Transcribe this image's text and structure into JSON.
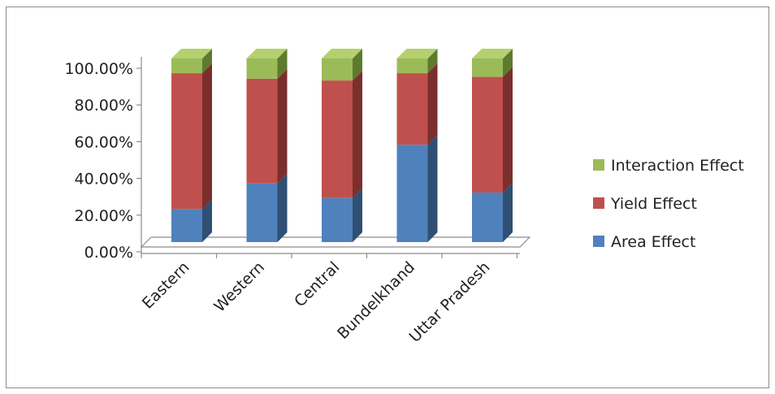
{
  "chart_data": {
    "type": "bar",
    "stacked": true,
    "style": "3d-column-100pct",
    "categories": [
      "Eastern",
      "Western",
      "Central",
      "Bundelkhand",
      "Uttar Pradesh"
    ],
    "series": [
      {
        "name": "Area Effect",
        "values": [
          18,
          32,
          24,
          53,
          27
        ],
        "color": "#4f81bd",
        "dark": "#2f4f73",
        "light": "#6b9ad0"
      },
      {
        "name": "Yield Effect",
        "values": [
          74,
          57,
          64,
          39,
          63
        ],
        "color": "#c0504d",
        "dark": "#7a2f2d",
        "light": "#d06c69"
      },
      {
        "name": "Interaction Effect",
        "values": [
          8,
          11,
          12,
          8,
          10
        ],
        "color": "#9bbb59",
        "dark": "#5e7a2f",
        "light": "#b5d06f"
      }
    ],
    "y_ticks": [
      "0.00%",
      "20.00%",
      "40.00%",
      "60.00%",
      "80.00%",
      "100.00%"
    ],
    "ylim": [
      0,
      100
    ],
    "legend_position": "right",
    "legend_order": [
      "Interaction Effect",
      "Yield Effect",
      "Area Effect"
    ],
    "grid": false
  }
}
